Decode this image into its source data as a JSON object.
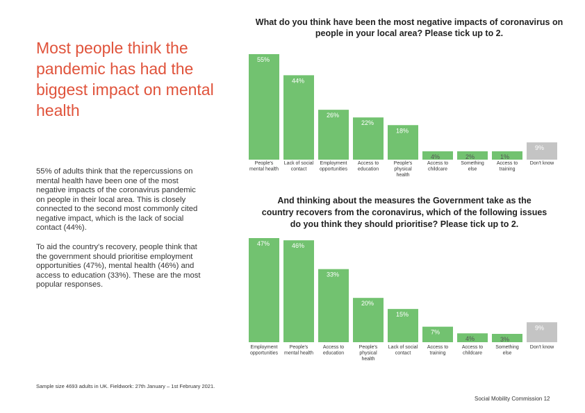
{
  "headline": "Most people think the pandemic has had the biggest impact on mental health",
  "body_paragraph_1": "55% of adults think that the repercussions on mental health have been one of the most negative impacts of the coronavirus pandemic on people in their local area. This is closely connected to  the second most commonly cited negative impact, which is the lack of social contact (44%).",
  "body_paragraph_2": "To aid the country's recovery, people think that the government should prioritise employment opportunities (47%), mental health (46%) and access to education (33%). These are the most popular responses.",
  "footnote": "Sample size 4693 adults in UK. Fieldwork: 27th January – 1st February 2021.",
  "footer": "Social Mobility Commission  12",
  "colors": {
    "bar": "#72c270",
    "bar_muted": "#c4c4c4",
    "headline": "#e0533b"
  },
  "chart_data": [
    {
      "type": "bar",
      "title": "What do you think have been the most negative impacts of coronavirus on people in your local area? Please tick up to 2.",
      "categories": [
        [
          "People's",
          "mental health"
        ],
        [
          "Lack of social",
          "contact"
        ],
        [
          "Employment",
          "opportunities"
        ],
        [
          "Access to",
          "education"
        ],
        [
          "People's",
          "physical",
          "health"
        ],
        [
          "Access to",
          "childcare"
        ],
        [
          "Something",
          "else"
        ],
        [
          "Access to",
          "training"
        ],
        [
          "Don't know"
        ]
      ],
      "values": [
        55,
        44,
        26,
        22,
        18,
        4,
        2,
        1,
        9
      ],
      "value_labels": [
        "55%",
        "44%",
        "26%",
        "22%",
        "18%",
        "4%",
        "2%",
        "1%",
        "9%"
      ],
      "muted_last": true,
      "ylim": [
        0,
        55
      ],
      "xlabel": "",
      "ylabel": "",
      "grid": false,
      "legend": "none"
    },
    {
      "type": "bar",
      "title": "And thinking about the measures the Government take as the country recovers from the coronavirus, which of the following issues do you think they should prioritise? Please tick up to 2.",
      "categories": [
        [
          "Employment",
          "opportunities"
        ],
        [
          "People's",
          "mental health"
        ],
        [
          "Access to",
          "education"
        ],
        [
          "People's",
          "physical",
          "health"
        ],
        [
          "Lack of social",
          "contact"
        ],
        [
          "Access to",
          "training"
        ],
        [
          "Access to",
          "childcare"
        ],
        [
          "Something",
          "else"
        ],
        [
          "Don't know"
        ]
      ],
      "values": [
        47,
        46,
        33,
        20,
        15,
        7,
        4,
        3,
        9
      ],
      "value_labels": [
        "47%",
        "46%",
        "33%",
        "20%",
        "15%",
        "7%",
        "4%",
        "3%",
        "9%"
      ],
      "muted_last": true,
      "ylim": [
        0,
        47
      ],
      "xlabel": "",
      "ylabel": "",
      "grid": false,
      "legend": "none"
    }
  ]
}
